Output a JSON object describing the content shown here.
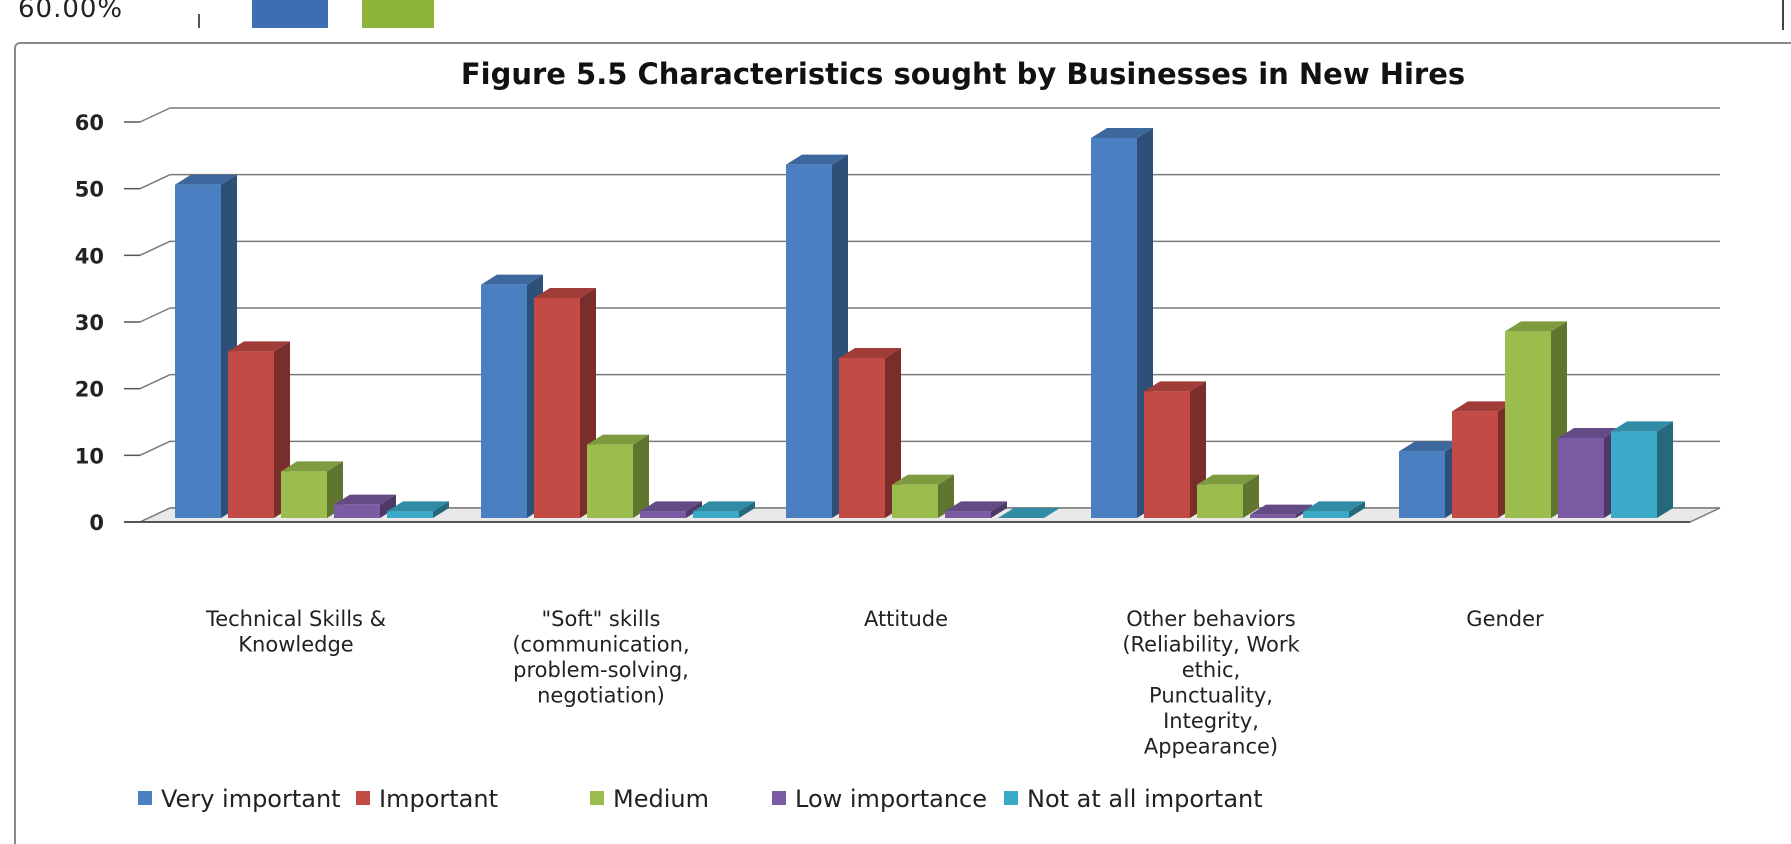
{
  "fragment": {
    "text": "60.00%",
    "colors": [
      "#3d6eb3",
      "#8db33a"
    ]
  },
  "chart_data": {
    "type": "bar",
    "title": "Figure 5.5 Characteristics sought by Businesses in New Hires",
    "categories": [
      [
        "Technical Skills &",
        "Knowledge"
      ],
      [
        "\"Soft\" skills",
        "(communication,",
        "problem-solving,",
        "negotiation)"
      ],
      [
        "Attitude"
      ],
      [
        "Other behaviors",
        "(Reliability, Work",
        "ethic,",
        "Punctuality,",
        "Integrity,",
        "Appearance)"
      ],
      [
        "Gender"
      ]
    ],
    "series": [
      {
        "name": "Very important",
        "color": "#4a7fc1",
        "values": [
          50,
          35,
          53,
          57,
          10
        ]
      },
      {
        "name": "Important",
        "color": "#c44a45",
        "values": [
          25,
          33,
          24,
          19,
          16
        ]
      },
      {
        "name": "Medium",
        "color": "#9bbd4d",
        "values": [
          7,
          11,
          5,
          5,
          28
        ]
      },
      {
        "name": "Low importance",
        "color": "#7b5ca3",
        "values": [
          2,
          1,
          1,
          0.5,
          12
        ]
      },
      {
        "name": "Not at all important",
        "color": "#3ba9c8",
        "values": [
          1,
          1,
          0,
          1,
          13
        ]
      }
    ],
    "ylim": [
      0,
      60
    ],
    "yticks": [
      "0",
      "10",
      "20",
      "30",
      "40",
      "50",
      "60"
    ],
    "grid": true,
    "legend": "bottom"
  }
}
